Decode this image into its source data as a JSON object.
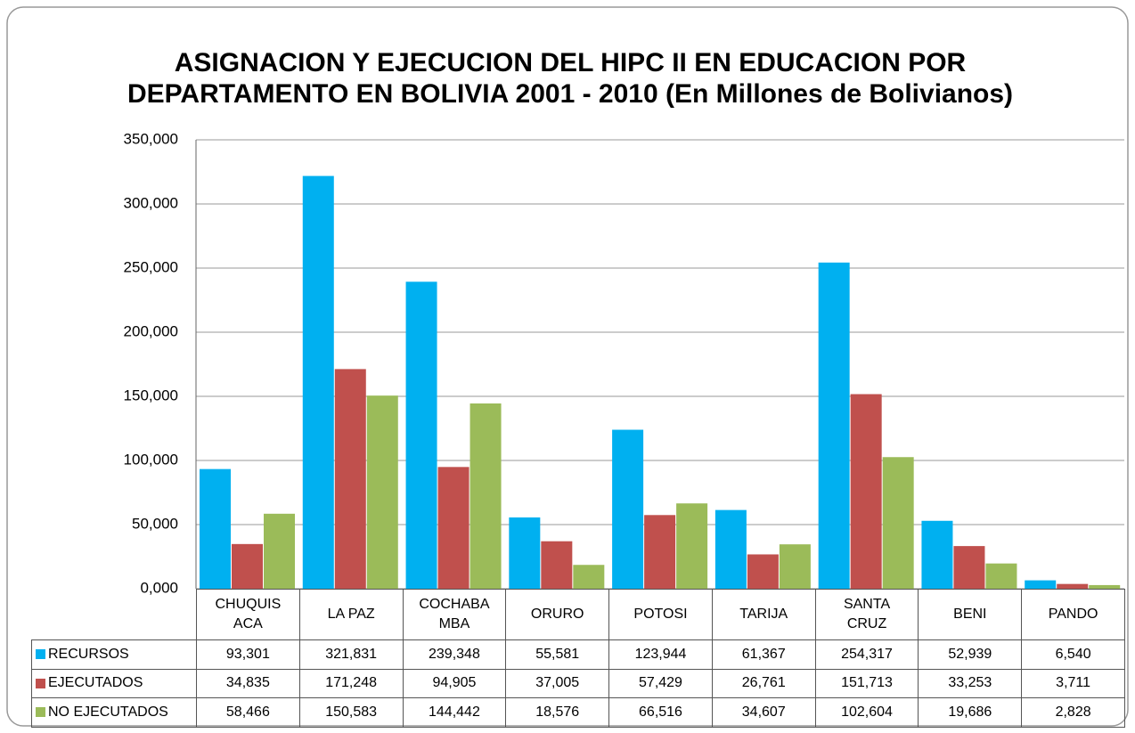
{
  "chart_data": {
    "type": "bar",
    "title": "ASIGNACION Y EJECUCION DEL HIPC II EN EDUCACION POR",
    "subtitle": "DEPARTAMENTO EN BOLIVIA  2001 - 2010 (En Millones de Bolivianos)",
    "categories": [
      "CHUQUIS\nACA",
      "LA PAZ",
      "COCHABA\nMBA",
      "ORURO",
      "POTOSI",
      "TARIJA",
      "SANTA\nCRUZ",
      "BENI",
      "PANDO"
    ],
    "series": [
      {
        "name": "RECURSOS",
        "color": "#00b0f0",
        "values": [
          93.301,
          321.831,
          239.348,
          55.581,
          123.944,
          61.367,
          254.317,
          52.939,
          6.54
        ],
        "value_labels": [
          "93,301",
          "321,831",
          "239,348",
          "55,581",
          "123,944",
          "61,367",
          "254,317",
          "52,939",
          "6,540"
        ]
      },
      {
        "name": "EJECUTADOS",
        "color": "#c0504d",
        "values": [
          34.835,
          171.248,
          94.905,
          37.005,
          57.429,
          26.761,
          151.713,
          33.253,
          3.711
        ],
        "value_labels": [
          "34,835",
          "171,248",
          "94,905",
          "37,005",
          "57,429",
          "26,761",
          "151,713",
          "33,253",
          "3,711"
        ]
      },
      {
        "name": "NO EJECUTADOS",
        "color": "#9bbb59",
        "values": [
          58.466,
          150.583,
          144.442,
          18.576,
          66.516,
          34.607,
          102.604,
          19.686,
          2.828
        ],
        "value_labels": [
          "58,466",
          "150,583",
          "144,442",
          "18,576",
          "66,516",
          "34,607",
          "102,604",
          "19,686",
          "2,828"
        ]
      }
    ],
    "ylim": [
      0,
      350
    ],
    "yticks": [
      {
        "value": 0,
        "label": "0,000"
      },
      {
        "value": 50,
        "label": "50,000"
      },
      {
        "value": 100,
        "label": "100,000"
      },
      {
        "value": 150,
        "label": "150,000"
      },
      {
        "value": 200,
        "label": "200,000"
      },
      {
        "value": 250,
        "label": "250,000"
      },
      {
        "value": 300,
        "label": "300,000"
      },
      {
        "value": 350,
        "label": "350,000"
      }
    ],
    "grid": true
  }
}
